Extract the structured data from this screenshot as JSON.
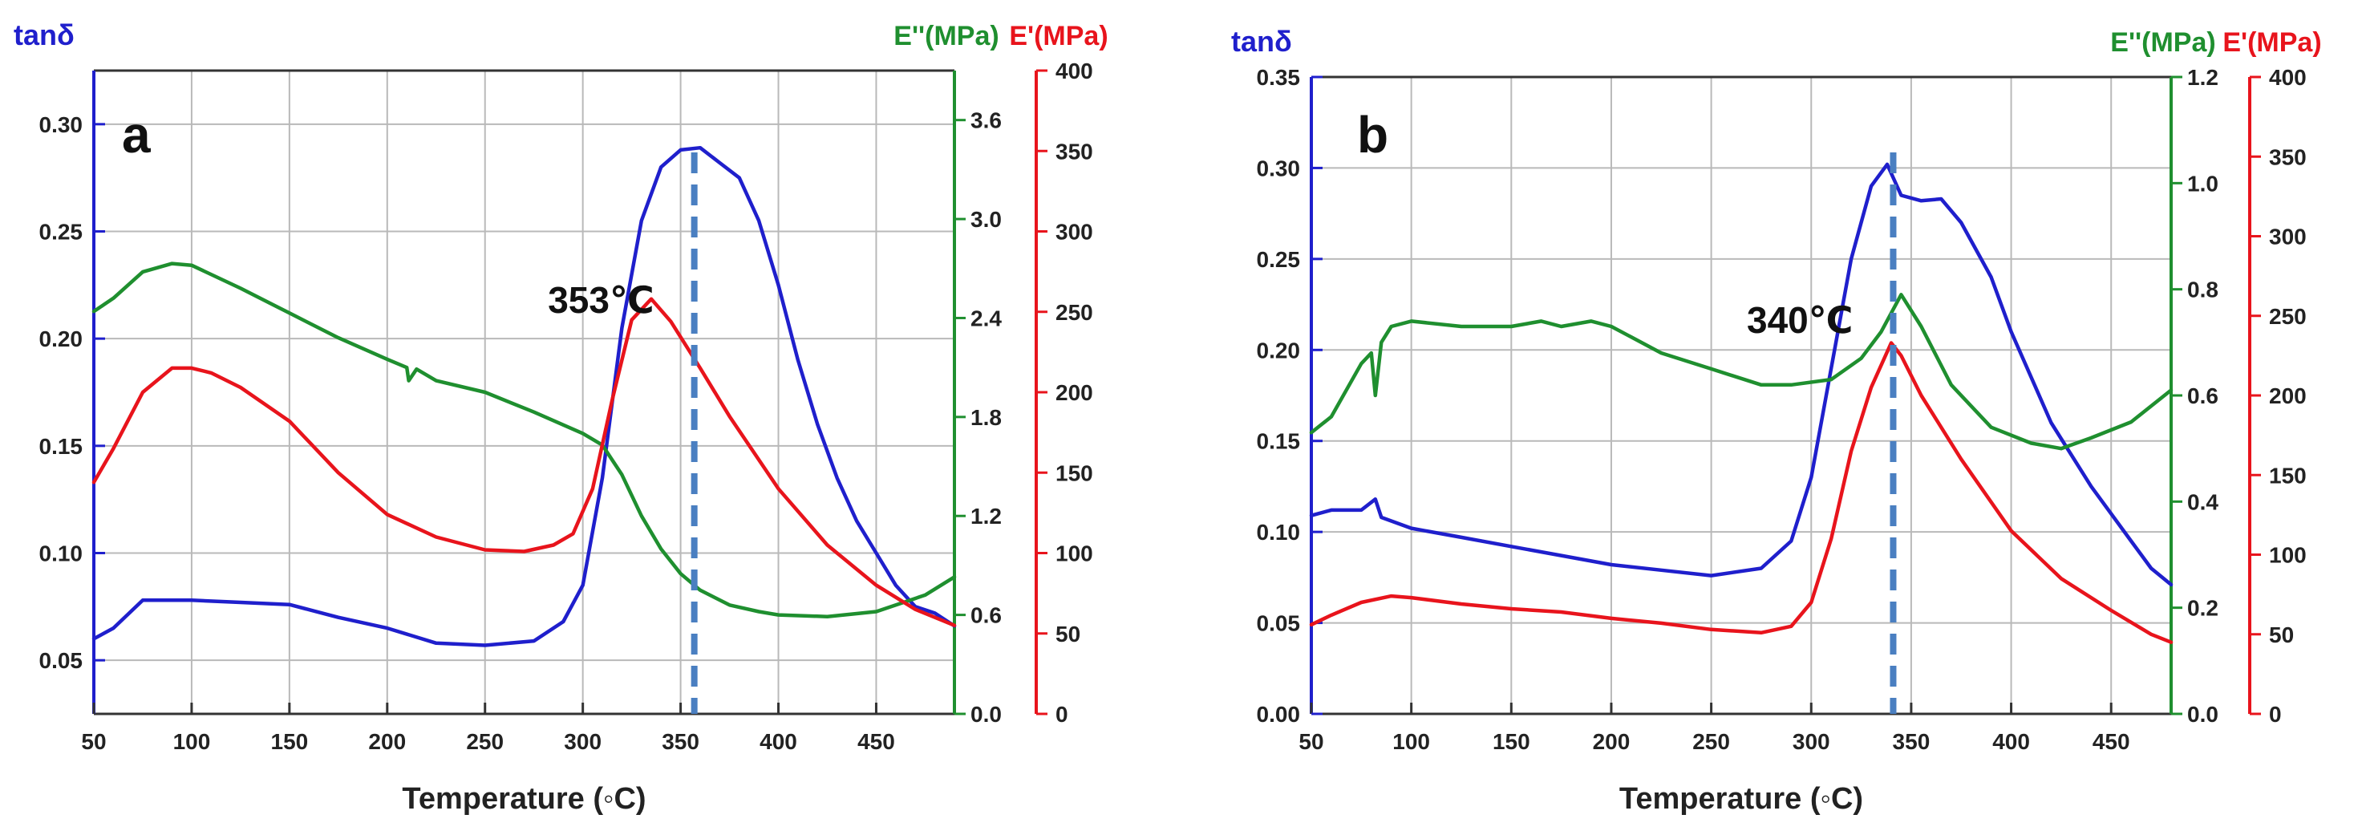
{
  "chart_data": [
    {
      "type": "line",
      "panel_label": "a",
      "xlabel": "Temperature (◦C)",
      "xlim": [
        50,
        490
      ],
      "xticks": [
        50,
        100,
        150,
        200,
        250,
        300,
        350,
        400,
        450
      ],
      "annotation": {
        "text": "353℃",
        "x": 357
      },
      "axes": {
        "left": {
          "label": "tanδ",
          "color": "#1f1fcc",
          "lim": [
            0.025,
            0.325
          ],
          "ticks": [
            0.05,
            0.1,
            0.15,
            0.2,
            0.25,
            0.3
          ],
          "tick_labels": [
            "0.05",
            "0.10",
            "0.15",
            "0.20",
            "0.25",
            "0.30"
          ]
        },
        "right1": {
          "label": "E''(MPa)",
          "color": "#1f8f2f",
          "lim": [
            0.0,
            3.9
          ],
          "ticks": [
            0.0,
            0.6,
            1.2,
            1.8,
            2.4,
            3.0,
            3.6
          ],
          "tick_labels": [
            "0.0",
            "0.6",
            "1.2",
            "1.8",
            "2.4",
            "3.0",
            "3.6"
          ]
        },
        "right2": {
          "label": "E'(MPa)",
          "color": "#e8141c",
          "lim": [
            0,
            400
          ],
          "ticks": [
            0,
            50,
            100,
            150,
            200,
            250,
            300,
            350,
            400
          ],
          "tick_labels": [
            "0",
            "50",
            "100",
            "150",
            "200",
            "250",
            "300",
            "350",
            "400"
          ]
        }
      },
      "series": [
        {
          "name": "tanδ",
          "axis": "left",
          "color": "#1f1fcc",
          "points": [
            [
              50,
              0.06
            ],
            [
              60,
              0.065
            ],
            [
              75,
              0.078
            ],
            [
              100,
              0.078
            ],
            [
              125,
              0.077
            ],
            [
              150,
              0.076
            ],
            [
              175,
              0.07
            ],
            [
              200,
              0.065
            ],
            [
              225,
              0.058
            ],
            [
              250,
              0.057
            ],
            [
              275,
              0.059
            ],
            [
              290,
              0.068
            ],
            [
              300,
              0.085
            ],
            [
              310,
              0.135
            ],
            [
              320,
              0.205
            ],
            [
              330,
              0.255
            ],
            [
              340,
              0.28
            ],
            [
              350,
              0.288
            ],
            [
              360,
              0.289
            ],
            [
              370,
              0.282
            ],
            [
              380,
              0.275
            ],
            [
              390,
              0.255
            ],
            [
              400,
              0.225
            ],
            [
              410,
              0.19
            ],
            [
              420,
              0.16
            ],
            [
              430,
              0.135
            ],
            [
              440,
              0.115
            ],
            [
              450,
              0.1
            ],
            [
              460,
              0.085
            ],
            [
              470,
              0.075
            ],
            [
              480,
              0.072
            ],
            [
              490,
              0.066
            ]
          ]
        },
        {
          "name": "E''",
          "axis": "right1",
          "color": "#1f8f2f",
          "points": [
            [
              50,
              2.44
            ],
            [
              60,
              2.52
            ],
            [
              75,
              2.68
            ],
            [
              90,
              2.73
            ],
            [
              100,
              2.72
            ],
            [
              125,
              2.58
            ],
            [
              150,
              2.43
            ],
            [
              175,
              2.28
            ],
            [
              200,
              2.15
            ],
            [
              210,
              2.1
            ],
            [
              211,
              2.02
            ],
            [
              215,
              2.09
            ],
            [
              225,
              2.02
            ],
            [
              250,
              1.95
            ],
            [
              275,
              1.83
            ],
            [
              300,
              1.7
            ],
            [
              310,
              1.63
            ],
            [
              320,
              1.45
            ],
            [
              330,
              1.2
            ],
            [
              340,
              1.0
            ],
            [
              350,
              0.85
            ],
            [
              360,
              0.75
            ],
            [
              375,
              0.66
            ],
            [
              390,
              0.62
            ],
            [
              400,
              0.6
            ],
            [
              425,
              0.59
            ],
            [
              450,
              0.62
            ],
            [
              475,
              0.72
            ],
            [
              490,
              0.83
            ]
          ]
        },
        {
          "name": "E'",
          "axis": "right2",
          "color": "#e8141c",
          "points": [
            [
              50,
              144
            ],
            [
              60,
              165
            ],
            [
              75,
              200
            ],
            [
              90,
              215
            ],
            [
              100,
              215
            ],
            [
              110,
              212
            ],
            [
              125,
              203
            ],
            [
              150,
              182
            ],
            [
              175,
              150
            ],
            [
              200,
              124
            ],
            [
              225,
              110
            ],
            [
              250,
              102
            ],
            [
              270,
              101
            ],
            [
              285,
              105
            ],
            [
              295,
              112
            ],
            [
              305,
              140
            ],
            [
              315,
              195
            ],
            [
              325,
              245
            ],
            [
              335,
              258
            ],
            [
              345,
              244
            ],
            [
              360,
              215
            ],
            [
              375,
              185
            ],
            [
              400,
              140
            ],
            [
              425,
              105
            ],
            [
              450,
              80
            ],
            [
              470,
              65
            ],
            [
              480,
              60
            ],
            [
              490,
              55
            ]
          ]
        }
      ]
    },
    {
      "type": "line",
      "panel_label": "b",
      "xlabel": "Temperature (◦C)",
      "xlim": [
        50,
        480
      ],
      "xticks": [
        50,
        100,
        150,
        200,
        250,
        300,
        350,
        400,
        450
      ],
      "annotation": {
        "text": "340℃",
        "x": 341
      },
      "axes": {
        "left": {
          "label": "tanδ",
          "color": "#1f1fcc",
          "lim": [
            0.0,
            0.35
          ],
          "ticks": [
            0.0,
            0.05,
            0.1,
            0.15,
            0.2,
            0.25,
            0.3,
            0.35
          ],
          "tick_labels": [
            "0.00",
            "0.05",
            "0.10",
            "0.15",
            "0.20",
            "0.25",
            "0.30",
            "0.35"
          ]
        },
        "right1": {
          "label": "E''(MPa)",
          "color": "#1f8f2f",
          "lim": [
            0.0,
            1.2
          ],
          "ticks": [
            0.0,
            0.2,
            0.4,
            0.6,
            0.8,
            1.0,
            1.2
          ],
          "tick_labels": [
            "0.0",
            "0.2",
            "0.4",
            "0.6",
            "0.8",
            "1.0",
            "1.2"
          ]
        },
        "right2": {
          "label": "E'(MPa)",
          "color": "#e8141c",
          "lim": [
            0,
            400
          ],
          "ticks": [
            0,
            50,
            100,
            150,
            200,
            250,
            300,
            350,
            400
          ],
          "tick_labels": [
            "0",
            "50",
            "100",
            "150",
            "200",
            "250",
            "300",
            "350",
            "400"
          ]
        }
      },
      "series": [
        {
          "name": "tanδ",
          "axis": "left",
          "color": "#1f1fcc",
          "points": [
            [
              50,
              0.109
            ],
            [
              60,
              0.112
            ],
            [
              75,
              0.112
            ],
            [
              82,
              0.118
            ],
            [
              85,
              0.108
            ],
            [
              100,
              0.102
            ],
            [
              125,
              0.097
            ],
            [
              150,
              0.092
            ],
            [
              175,
              0.087
            ],
            [
              200,
              0.082
            ],
            [
              225,
              0.079
            ],
            [
              250,
              0.076
            ],
            [
              275,
              0.08
            ],
            [
              290,
              0.095
            ],
            [
              300,
              0.13
            ],
            [
              310,
              0.19
            ],
            [
              320,
              0.25
            ],
            [
              330,
              0.29
            ],
            [
              338,
              0.302
            ],
            [
              345,
              0.285
            ],
            [
              355,
              0.282
            ],
            [
              365,
              0.283
            ],
            [
              375,
              0.27
            ],
            [
              390,
              0.24
            ],
            [
              400,
              0.21
            ],
            [
              420,
              0.16
            ],
            [
              440,
              0.125
            ],
            [
              460,
              0.095
            ],
            [
              470,
              0.08
            ],
            [
              480,
              0.071
            ]
          ]
        },
        {
          "name": "E''",
          "axis": "right1",
          "color": "#1f8f2f",
          "points": [
            [
              50,
              0.53
            ],
            [
              60,
              0.56
            ],
            [
              75,
              0.66
            ],
            [
              80,
              0.68
            ],
            [
              82,
              0.6
            ],
            [
              85,
              0.7
            ],
            [
              90,
              0.73
            ],
            [
              100,
              0.74
            ],
            [
              125,
              0.73
            ],
            [
              150,
              0.73
            ],
            [
              165,
              0.74
            ],
            [
              175,
              0.73
            ],
            [
              190,
              0.74
            ],
            [
              200,
              0.73
            ],
            [
              225,
              0.68
            ],
            [
              250,
              0.65
            ],
            [
              275,
              0.62
            ],
            [
              290,
              0.62
            ],
            [
              310,
              0.63
            ],
            [
              325,
              0.67
            ],
            [
              335,
              0.72
            ],
            [
              345,
              0.79
            ],
            [
              355,
              0.73
            ],
            [
              370,
              0.62
            ],
            [
              390,
              0.54
            ],
            [
              410,
              0.51
            ],
            [
              425,
              0.5
            ],
            [
              440,
              0.52
            ],
            [
              460,
              0.55
            ],
            [
              480,
              0.61
            ]
          ]
        },
        {
          "name": "E'",
          "axis": "right2",
          "color": "#e8141c",
          "points": [
            [
              50,
              56
            ],
            [
              60,
              62
            ],
            [
              75,
              70
            ],
            [
              90,
              74
            ],
            [
              100,
              73
            ],
            [
              125,
              69
            ],
            [
              150,
              66
            ],
            [
              175,
              64
            ],
            [
              200,
              60
            ],
            [
              225,
              57
            ],
            [
              250,
              53
            ],
            [
              275,
              51
            ],
            [
              290,
              55
            ],
            [
              300,
              70
            ],
            [
              310,
              110
            ],
            [
              320,
              165
            ],
            [
              330,
              205
            ],
            [
              340,
              233
            ],
            [
              345,
              225
            ],
            [
              355,
              200
            ],
            [
              375,
              160
            ],
            [
              400,
              115
            ],
            [
              425,
              85
            ],
            [
              450,
              65
            ],
            [
              470,
              50
            ],
            [
              480,
              45
            ]
          ]
        }
      ]
    }
  ]
}
